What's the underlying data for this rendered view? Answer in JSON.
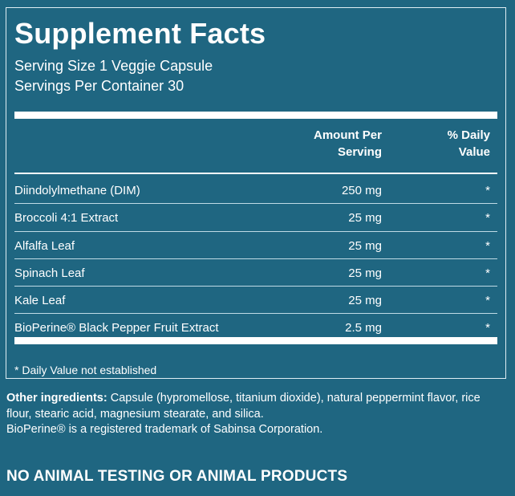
{
  "facts": {
    "title": "Supplement Facts",
    "serving_size": "Serving Size 1 Veggie Capsule",
    "servings_per_container": "Servings Per Container 30",
    "header_amount_line1": "Amount Per",
    "header_amount_line2": "Serving",
    "header_dv_line1": "% Daily",
    "header_dv_line2": "Value",
    "rows": [
      {
        "name": "Diindolylmethane (DIM)",
        "amount": "250 mg",
        "dv": "*"
      },
      {
        "name": "Broccoli 4:1 Extract",
        "amount": "25 mg",
        "dv": "*"
      },
      {
        "name": "Alfalfa Leaf",
        "amount": "25 mg",
        "dv": "*"
      },
      {
        "name": "Spinach Leaf",
        "amount": "25 mg",
        "dv": "*"
      },
      {
        "name": "Kale Leaf",
        "amount": "25 mg",
        "dv": "*"
      },
      {
        "name": "BioPerine® Black Pepper Fruit Extract",
        "amount": "2.5 mg",
        "dv": "*"
      }
    ],
    "footnote": "* Daily Value not established"
  },
  "other_ingredients": {
    "label": "Other ingredients:",
    "text": " Capsule (hypromellose, titanium dioxide), natural peppermint flavor, rice flour, stearic acid, magnesium stearate, and silica."
  },
  "trademark": "BioPerine® is a registered trademark of Sabinsa Corporation.",
  "claim": "NO ANIMAL TESTING OR ANIMAL PRODUCTS",
  "colors": {
    "background": "#1f6681",
    "text": "#ffffff"
  }
}
